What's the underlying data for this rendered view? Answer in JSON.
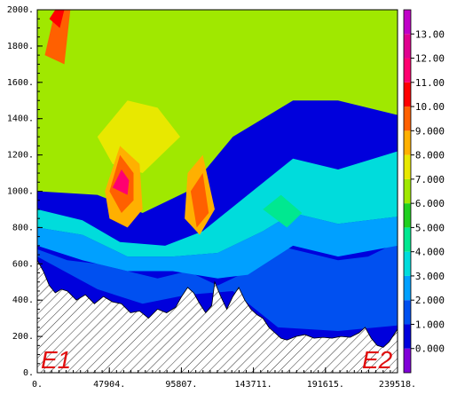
{
  "chart_data": {
    "type": "heatmap",
    "title": "",
    "xlabel": "",
    "ylabel": "",
    "xlim": [
      0,
      239518
    ],
    "ylim": [
      0,
      2000
    ],
    "x_ticks": [
      "0.",
      "47904.",
      "95807.",
      "143711.",
      "191615.",
      "239518."
    ],
    "y_ticks": [
      "0.",
      "200.",
      "400.",
      "600.",
      "800.",
      "1000.",
      "1200.",
      "1400.",
      "1600.",
      "1800.",
      "2000."
    ],
    "colorbar": {
      "labels": [
        "0.000",
        "1.000",
        "2.000",
        "3.000",
        "4.000",
        "5.000",
        "6.000",
        "7.000",
        "8.000",
        "9.000",
        "10.00",
        "11.00",
        "12.00",
        "13.00"
      ],
      "colors": [
        "#8000d8",
        "#0000dc",
        "#0050f0",
        "#00a0ff",
        "#00dcdc",
        "#00e890",
        "#20d020",
        "#a0e800",
        "#e8e800",
        "#ffb000",
        "#ff6000",
        "#ff0000",
        "#ff0070",
        "#e00090",
        "#c000c8"
      ]
    },
    "endpoints": {
      "left": "E1",
      "right": "E2"
    },
    "terrain_profile": {
      "x": [
        0,
        4000,
        8000,
        12000,
        16000,
        20000,
        26000,
        32000,
        38000,
        44000,
        50000,
        56000,
        62000,
        68000,
        74000,
        80000,
        86000,
        92000,
        96000,
        100000,
        104000,
        108000,
        112000,
        116000,
        118000,
        122000,
        126000,
        130000,
        134000,
        138000,
        142000,
        146000,
        150000,
        154000,
        158000,
        162000,
        166000,
        172000,
        178000,
        184000,
        190000,
        196000,
        202000,
        208000,
        214000,
        218000,
        222000,
        226000,
        230000,
        234000,
        239518
      ],
      "y": [
        620,
        560,
        480,
        440,
        460,
        450,
        400,
        430,
        380,
        420,
        390,
        380,
        330,
        340,
        300,
        350,
        330,
        360,
        420,
        470,
        440,
        380,
        330,
        370,
        500,
        420,
        350,
        420,
        470,
        400,
        350,
        320,
        300,
        250,
        220,
        190,
        180,
        200,
        210,
        190,
        195,
        190,
        200,
        195,
        220,
        250,
        190,
        150,
        140,
        170,
        240
      ]
    },
    "contours": [
      {
        "level": 1.0,
        "color": "#0050f0",
        "points": [
          [
            0,
            680
          ],
          [
            20000,
            620
          ],
          [
            40000,
            600
          ],
          [
            60000,
            560
          ],
          [
            80000,
            520
          ],
          [
            100000,
            560
          ],
          [
            120000,
            480
          ],
          [
            140000,
            560
          ],
          [
            160000,
            700
          ],
          [
            180000,
            660
          ],
          [
            200000,
            620
          ],
          [
            220000,
            640
          ],
          [
            239518,
            720
          ],
          [
            239518,
            260
          ],
          [
            200000,
            230
          ],
          [
            160000,
            250
          ],
          [
            130000,
            450
          ],
          [
            100000,
            430
          ],
          [
            70000,
            380
          ],
          [
            40000,
            460
          ],
          [
            0,
            640
          ]
        ]
      },
      {
        "level": 2.0,
        "color": "#00a0ff",
        "points": [
          [
            0,
            800
          ],
          [
            30000,
            760
          ],
          [
            60000,
            640
          ],
          [
            90000,
            640
          ],
          [
            120000,
            660
          ],
          [
            150000,
            780
          ],
          [
            170000,
            880
          ],
          [
            200000,
            820
          ],
          [
            239518,
            860
          ],
          [
            239518,
            700
          ],
          [
            200000,
            640
          ],
          [
            170000,
            700
          ],
          [
            140000,
            540
          ],
          [
            120000,
            520
          ],
          [
            90000,
            560
          ],
          [
            60000,
            560
          ],
          [
            30000,
            620
          ],
          [
            0,
            700
          ]
        ]
      },
      {
        "level": 3.0,
        "color": "#00dcdc",
        "points": [
          [
            0,
            900
          ],
          [
            30000,
            840
          ],
          [
            55000,
            720
          ],
          [
            85000,
            700
          ],
          [
            110000,
            780
          ],
          [
            140000,
            980
          ],
          [
            170000,
            1180
          ],
          [
            200000,
            1120
          ],
          [
            239518,
            1220
          ],
          [
            239518,
            860
          ],
          [
            200000,
            820
          ],
          [
            170000,
            880
          ],
          [
            150000,
            780
          ],
          [
            120000,
            660
          ],
          [
            90000,
            640
          ],
          [
            60000,
            640
          ],
          [
            30000,
            760
          ],
          [
            0,
            800
          ]
        ]
      },
      {
        "level": 5.0,
        "color": "#00e890",
        "points": [
          [
            150000,
            900
          ],
          [
            162000,
            980
          ],
          [
            176000,
            880
          ],
          [
            166000,
            800
          ]
        ]
      },
      {
        "level": 7.0,
        "color": "#a0e800",
        "points": [
          [
            0,
            1000
          ],
          [
            40000,
            980
          ],
          [
            70000,
            880
          ],
          [
            100000,
            1000
          ],
          [
            130000,
            1300
          ],
          [
            170000,
            1500
          ],
          [
            200000,
            1500
          ],
          [
            239518,
            1420
          ],
          [
            239518,
            2000
          ],
          [
            0,
            2000
          ]
        ]
      },
      {
        "level": 8.0,
        "color": "#e8e800",
        "points": [
          [
            40000,
            1300
          ],
          [
            60000,
            1500
          ],
          [
            80000,
            1460
          ],
          [
            95000,
            1300
          ],
          [
            70000,
            1100
          ],
          [
            50000,
            1150
          ]
        ]
      },
      {
        "level": 9.0,
        "color": "#ffb000",
        "points": [
          [
            45000,
            1000
          ],
          [
            55000,
            1250
          ],
          [
            68000,
            1150
          ],
          [
            70000,
            900
          ],
          [
            60000,
            800
          ],
          [
            48000,
            850
          ]
        ]
      },
      {
        "level": 10.0,
        "color": "#ff6000",
        "points": [
          [
            48000,
            1000
          ],
          [
            55000,
            1200
          ],
          [
            64000,
            1100
          ],
          [
            64000,
            950
          ],
          [
            56000,
            880
          ]
        ]
      },
      {
        "level": 12.0,
        "color": "#ff0070",
        "points": [
          [
            50000,
            1020
          ],
          [
            56000,
            1120
          ],
          [
            61000,
            1060
          ],
          [
            60000,
            980
          ]
        ]
      },
      {
        "level": 9.0,
        "color": "#ffb000",
        "points": [
          [
            100000,
            1100
          ],
          [
            110000,
            1200
          ],
          [
            118000,
            900
          ],
          [
            108000,
            760
          ],
          [
            98000,
            850
          ]
        ]
      },
      {
        "level": 10.0,
        "color": "#ff6000",
        "points": [
          [
            102000,
            1000
          ],
          [
            110000,
            1100
          ],
          [
            114000,
            880
          ],
          [
            106000,
            800
          ]
        ]
      },
      {
        "level": 10.0,
        "color": "#ff6000",
        "points": [
          [
            5000,
            1750
          ],
          [
            12000,
            2000
          ],
          [
            22000,
            2000
          ],
          [
            18000,
            1700
          ]
        ]
      },
      {
        "level": 11.0,
        "color": "#ff0000",
        "points": [
          [
            8000,
            1950
          ],
          [
            12000,
            2000
          ],
          [
            18000,
            2000
          ],
          [
            15000,
            1900
          ]
        ]
      }
    ]
  }
}
